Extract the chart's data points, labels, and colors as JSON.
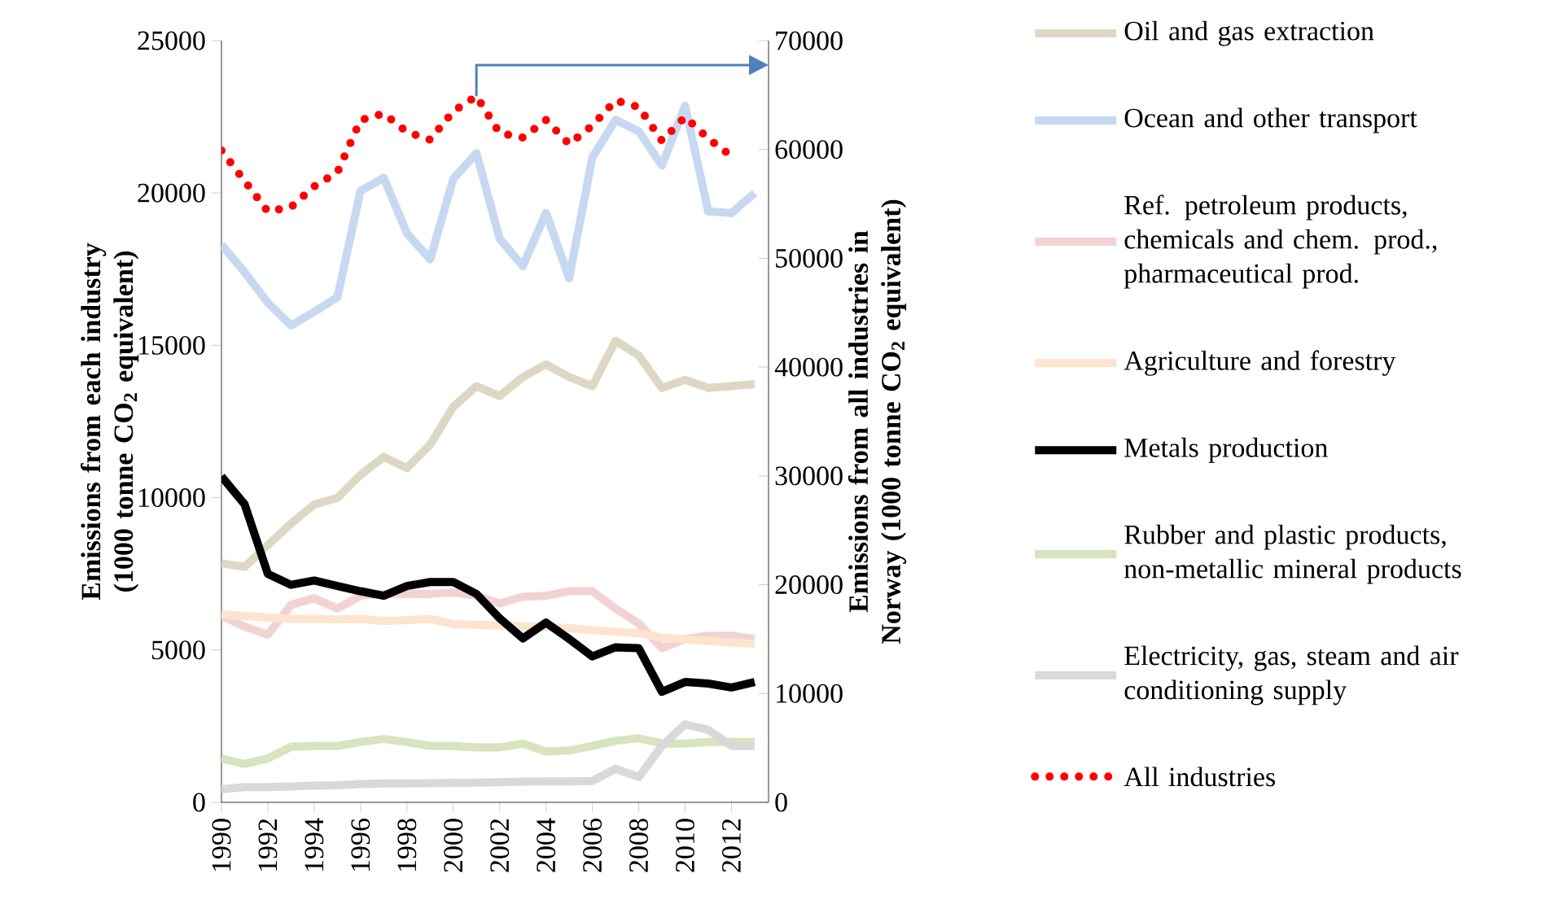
{
  "chart_data": {
    "type": "line",
    "ylabel": "Emissions from each industry (1000 tonne CO$_{2}$ equivalent)",
    "y2label": "Emissions from all industries in Norway (1000 tonne CO$_{2}$ equivalent)",
    "x": [
      1990,
      1991,
      1992,
      1993,
      1994,
      1995,
      1996,
      1997,
      1998,
      1999,
      2000,
      2001,
      2002,
      2003,
      2004,
      2005,
      2006,
      2007,
      2008,
      2009,
      2010,
      2011,
      2012,
      2013
    ],
    "xlim": [
      1990,
      2013.6
    ],
    "xticks": [
      1990,
      1992,
      1994,
      1996,
      1998,
      2000,
      2002,
      2004,
      2006,
      2008,
      2010,
      2012
    ],
    "ylim": [
      0,
      25000
    ],
    "yticks": [
      0,
      5000,
      10000,
      15000,
      20000,
      25000
    ],
    "y2lim": [
      0,
      70000
    ],
    "y2ticks": [
      0,
      10000,
      20000,
      30000,
      40000,
      50000,
      60000,
      70000
    ],
    "legend": "right",
    "grid": false,
    "series": [
      {
        "name": "Oil and gas extraction",
        "color": "#ddd8c4",
        "line_style": "solid",
        "values": [
          7850,
          7730,
          8440,
          9150,
          9780,
          9990,
          10750,
          11340,
          10970,
          11740,
          12980,
          13660,
          13340,
          13960,
          14370,
          13960,
          13660,
          15150,
          14670,
          13600,
          13870,
          13600,
          13660,
          13730
        ]
      },
      {
        "name": "Ocean and other transport",
        "color": "#c6d9f1",
        "line_style": "solid",
        "values": [
          18300,
          17400,
          16400,
          15650,
          16100,
          16580,
          20070,
          20500,
          18680,
          17820,
          20460,
          21310,
          18500,
          17600,
          19350,
          17200,
          21170,
          22400,
          22030,
          20900,
          22860,
          19400,
          19340,
          20000
        ]
      },
      {
        "name": "Ref. petroleum products, chemicals and chem. prod., pharmaceutical prod.",
        "color": "#f2d3d3",
        "line_style": "solid",
        "values": [
          6130,
          5770,
          5500,
          6480,
          6700,
          6360,
          6780,
          6840,
          6840,
          6840,
          6890,
          6780,
          6530,
          6750,
          6780,
          6930,
          6930,
          6360,
          5870,
          5060,
          5360,
          5470,
          5470,
          5360
        ]
      },
      {
        "name": "Agriculture and forestry",
        "color": "#fde4cf",
        "line_style": "solid",
        "values": [
          6170,
          6120,
          6070,
          6020,
          6020,
          6000,
          6020,
          5950,
          5980,
          6020,
          5850,
          5830,
          5800,
          5780,
          5750,
          5720,
          5650,
          5600,
          5550,
          5400,
          5350,
          5300,
          5250,
          5200
        ]
      },
      {
        "name": "Metals production",
        "color": "#000000",
        "line_style": "solid",
        "values": [
          10700,
          9780,
          7500,
          7140,
          7280,
          7100,
          6930,
          6780,
          7100,
          7230,
          7230,
          6840,
          6040,
          5380,
          5900,
          5360,
          4790,
          5090,
          5060,
          3630,
          3950,
          3900,
          3770,
          3950
        ]
      },
      {
        "name": "Rubber and plastic products, non-metallic mineral products",
        "color": "#d7e4bd",
        "line_style": "solid",
        "values": [
          1440,
          1260,
          1440,
          1820,
          1850,
          1850,
          1980,
          2080,
          1980,
          1850,
          1850,
          1800,
          1800,
          1930,
          1670,
          1700,
          1850,
          2020,
          2100,
          1930,
          1930,
          1980,
          1980,
          1980
        ]
      },
      {
        "name": "Electricity, gas, steam and air conditioning supply",
        "color": "#d9d9d9",
        "line_style": "solid",
        "values": [
          430,
          500,
          500,
          520,
          550,
          560,
          600,
          620,
          620,
          630,
          640,
          650,
          660,
          680,
          690,
          690,
          700,
          1100,
          830,
          1850,
          2560,
          2380,
          1850,
          1850
        ]
      },
      {
        "name": "All industries",
        "color": "#ff0000",
        "line_style": "dotted",
        "axis": "y2",
        "values": [
          59900,
          57100,
          54300,
          54700,
          56600,
          57900,
          62700,
          63300,
          61600,
          60900,
          63500,
          64900,
          61500,
          61100,
          62700,
          60500,
          62200,
          64500,
          63900,
          60800,
          63000,
          61000,
          59400,
          null
        ]
      }
    ]
  }
}
